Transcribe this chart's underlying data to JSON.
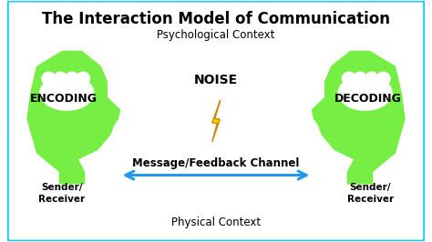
{
  "title": "The Interaction Model of Communication",
  "title_fontsize": 12,
  "title_fontweight": "bold",
  "background_color": "#ffffff",
  "border_color": "#00cfff",
  "border_linewidth": 2.5,
  "head_color": "#77ee44",
  "brain_color": "#ffffff",
  "arrow_color": "#2299ee",
  "noise_color": "#ffcc00",
  "noise_outline": "#cc8800",
  "noise_label": "NOISE",
  "noise_fontsize": 10,
  "noise_fontweight": "bold",
  "encoding_label": "ENCODING",
  "decoding_label": "DECODING",
  "encoding_fontsize": 9,
  "decoding_fontsize": 9,
  "channel_label": "Message/Feedback Channel",
  "channel_fontsize": 8.5,
  "channel_fontweight": "bold",
  "sender_receiver_label": "Sender/\nReceiver",
  "sender_receiver_fontsize": 7.5,
  "psych_context_label": "Psychological Context",
  "phys_context_label": "Physical Context",
  "context_fontsize": 8.5
}
